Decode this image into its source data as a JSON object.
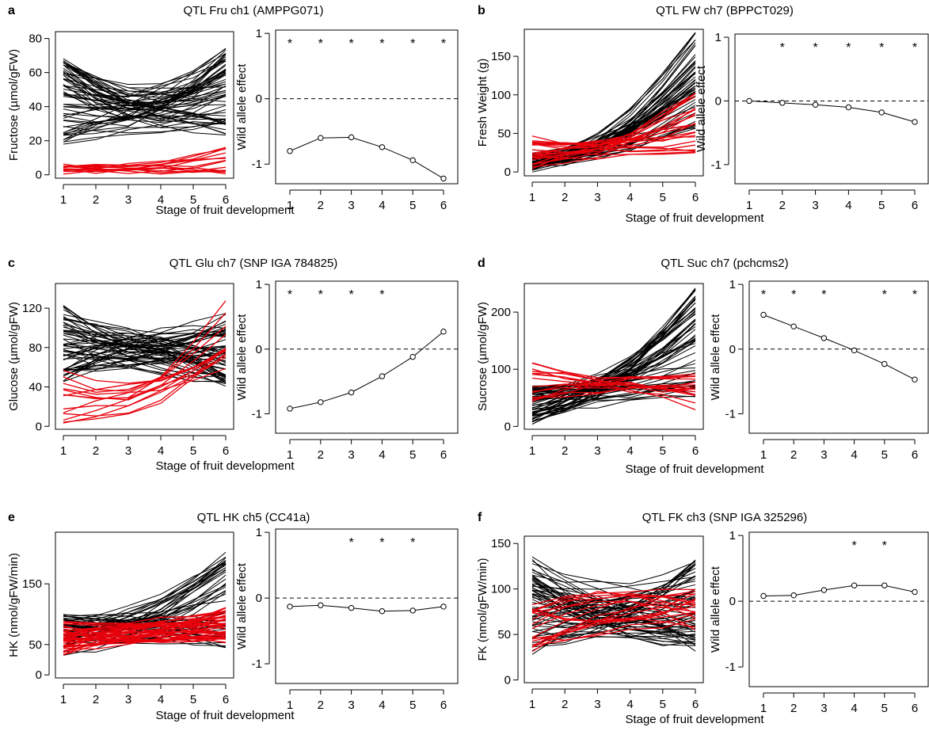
{
  "chart_data": [
    {
      "panel": "a",
      "title": "QTL Fru ch1 (AMPPG071)",
      "left": {
        "type": "line",
        "ylabel": "Fructose (µmol/gFW)",
        "x": [
          1,
          2,
          3,
          4,
          5,
          6
        ],
        "ylim": [
          -2,
          84
        ],
        "yticks": [
          0,
          20,
          40,
          60,
          80
        ],
        "profiles": {
          "black": {
            "count": 60,
            "start": [
              18,
              68
            ],
            "mid": [
              18,
              48
            ],
            "end": [
              24,
              78
            ],
            "mid_rel": -0.35
          },
          "red": {
            "count": 14,
            "start": [
              0,
              6
            ],
            "mid": [
              0,
              5
            ],
            "end": [
              1,
              15
            ],
            "mid_rel": -0.05
          }
        }
      },
      "right": {
        "type": "line",
        "ylabel": "Wild allele effect",
        "x": [
          1,
          2,
          3,
          4,
          5,
          6
        ],
        "values": [
          -0.8,
          -0.6,
          -0.59,
          -0.74,
          -0.94,
          -1.22
        ],
        "ylim": [
          -1.3,
          1.05
        ],
        "yticks": [
          -1,
          0,
          1
        ],
        "significant": [
          1,
          2,
          3,
          4,
          5,
          6
        ]
      },
      "xlabel": "Stage of fruit development"
    },
    {
      "panel": "b",
      "title": "QTL FW ch7 (BPPCT029)",
      "left": {
        "type": "line",
        "ylabel": "Fresh Weight (g)",
        "x": [
          1,
          2,
          3,
          4,
          5,
          6
        ],
        "ylim": [
          -5,
          185
        ],
        "yticks": [
          0,
          50,
          100,
          150
        ],
        "profiles": {
          "black": {
            "count": 55,
            "start": [
              3,
              22
            ],
            "mid": [
              15,
              45
            ],
            "end": [
              55,
              185
            ],
            "mid_rel": 0.25
          },
          "red": {
            "count": 22,
            "start": [
              5,
              47
            ],
            "mid": [
              20,
              40
            ],
            "end": [
              25,
              105
            ],
            "mid_rel": 0.3
          }
        }
      },
      "right": {
        "type": "line",
        "ylabel": "Wild allele effect",
        "x": [
          1,
          2,
          3,
          4,
          5,
          6
        ],
        "values": [
          0.0,
          -0.03,
          -0.06,
          -0.1,
          -0.18,
          -0.33
        ],
        "ylim": [
          -1.3,
          1.05
        ],
        "yticks": [
          -1,
          0,
          1
        ],
        "significant": [
          2,
          3,
          4,
          5,
          6
        ]
      },
      "xlabel": "Stage of fruit development"
    },
    {
      "panel": "c",
      "title": "QTL Glu ch7 (SNP IGA 784825)",
      "left": {
        "type": "line",
        "ylabel": "Glucose (µmol/gFW)",
        "x": [
          1,
          2,
          3,
          4,
          5,
          6
        ],
        "ylim": [
          -3,
          145
        ],
        "yticks": [
          0,
          40,
          80,
          120
        ],
        "profiles": {
          "black": {
            "count": 60,
            "start": [
              45,
              125
            ],
            "mid": [
              50,
              110
            ],
            "end": [
              42,
              115
            ],
            "mid_rel": -0.1
          },
          "red": {
            "count": 14,
            "start": [
              2,
              60
            ],
            "mid": [
              0,
              40
            ],
            "end": [
              60,
              140
            ],
            "mid_rel": -0.3
          }
        }
      },
      "right": {
        "type": "line",
        "ylabel": "Wild allele effect",
        "x": [
          1,
          2,
          3,
          4,
          5,
          6
        ],
        "values": [
          -0.92,
          -0.82,
          -0.67,
          -0.42,
          -0.12,
          0.27
        ],
        "ylim": [
          -1.3,
          1.05
        ],
        "yticks": [
          -1,
          0,
          1
        ],
        "significant": [
          1,
          2,
          3,
          4
        ]
      },
      "xlabel": "Stage of fruit development"
    },
    {
      "panel": "d",
      "title": "QTL Suc ch7 (pchcms2)",
      "left": {
        "type": "line",
        "ylabel": "Sucrose (µmol/gFW)",
        "x": [
          1,
          2,
          3,
          4,
          5,
          6
        ],
        "ylim": [
          -5,
          250
        ],
        "yticks": [
          0,
          100,
          200
        ],
        "profiles": {
          "black": {
            "count": 60,
            "start": [
              5,
              70
            ],
            "mid": [
              40,
              90
            ],
            "end": [
              55,
              245
            ],
            "mid_rel": 0.25
          },
          "red": {
            "count": 15,
            "start": [
              40,
              120
            ],
            "mid": [
              55,
              95
            ],
            "end": [
              30,
              100
            ],
            "mid_rel": 0.0
          }
        }
      },
      "right": {
        "type": "line",
        "ylabel": "Wild allele effect",
        "x": [
          1,
          2,
          3,
          4,
          5,
          6
        ],
        "values": [
          0.53,
          0.35,
          0.17,
          -0.02,
          -0.23,
          -0.47
        ],
        "ylim": [
          -1.3,
          1.05
        ],
        "yticks": [
          -1,
          0,
          1
        ],
        "significant": [
          1,
          2,
          3,
          5,
          6
        ]
      },
      "xlabel": "Stage of fruit development"
    },
    {
      "panel": "e",
      "title": "QTL HK ch5 (CC41a)",
      "left": {
        "type": "line",
        "ylabel": "HK (nmol/gFW/min)",
        "x": [
          1,
          2,
          3,
          4,
          5,
          6
        ],
        "ylim": [
          -5,
          235
        ],
        "yticks": [
          0,
          50,
          150
        ],
        "profiles": {
          "black": {
            "count": 50,
            "start": [
              35,
              100
            ],
            "mid": [
              45,
              110
            ],
            "end": [
              35,
              205
            ],
            "mid_rel": -0.25
          },
          "red": {
            "count": 40,
            "start": [
              35,
              85
            ],
            "mid": [
              45,
              95
            ],
            "end": [
              55,
              110
            ],
            "mid_rel": -0.2
          }
        }
      },
      "right": {
        "type": "line",
        "ylabel": "Wild allele effect",
        "x": [
          1,
          2,
          3,
          4,
          5,
          6
        ],
        "values": [
          -0.13,
          -0.11,
          -0.15,
          -0.2,
          -0.19,
          -0.13
        ],
        "ylim": [
          -1.3,
          1.05
        ],
        "yticks": [
          -1,
          0,
          1
        ],
        "significant": [
          3,
          4,
          5
        ]
      },
      "xlabel": "Stage of fruit development"
    },
    {
      "panel": "f",
      "title": "QTL FK ch3 (SNP IGA 325296)",
      "left": {
        "type": "line",
        "ylabel": "FK (nmol/gFW/min)",
        "x": [
          1,
          2,
          3,
          4,
          5,
          6
        ],
        "ylim": [
          -3,
          158
        ],
        "yticks": [
          0,
          50,
          100,
          150
        ],
        "profiles": {
          "black": {
            "count": 60,
            "start": [
              30,
              135
            ],
            "mid": [
              35,
              100
            ],
            "end": [
              30,
              132
            ],
            "mid_rel": -0.3
          },
          "red": {
            "count": 18,
            "start": [
              30,
              85
            ],
            "mid": [
              40,
              115
            ],
            "end": [
              40,
              105
            ],
            "mid_rel": -0.2
          }
        }
      },
      "right": {
        "type": "line",
        "ylabel": "Wild allele effect",
        "x": [
          1,
          2,
          3,
          4,
          5,
          6
        ],
        "values": [
          0.08,
          0.09,
          0.17,
          0.24,
          0.24,
          0.14
        ],
        "ylim": [
          -1.3,
          1.05
        ],
        "yticks": [
          -1,
          0,
          1
        ],
        "significant": [
          4,
          5
        ]
      },
      "xlabel": "Stage of fruit development"
    }
  ],
  "style": {
    "black": "#000000",
    "red": "#e8000b",
    "dashed": "#000000"
  }
}
